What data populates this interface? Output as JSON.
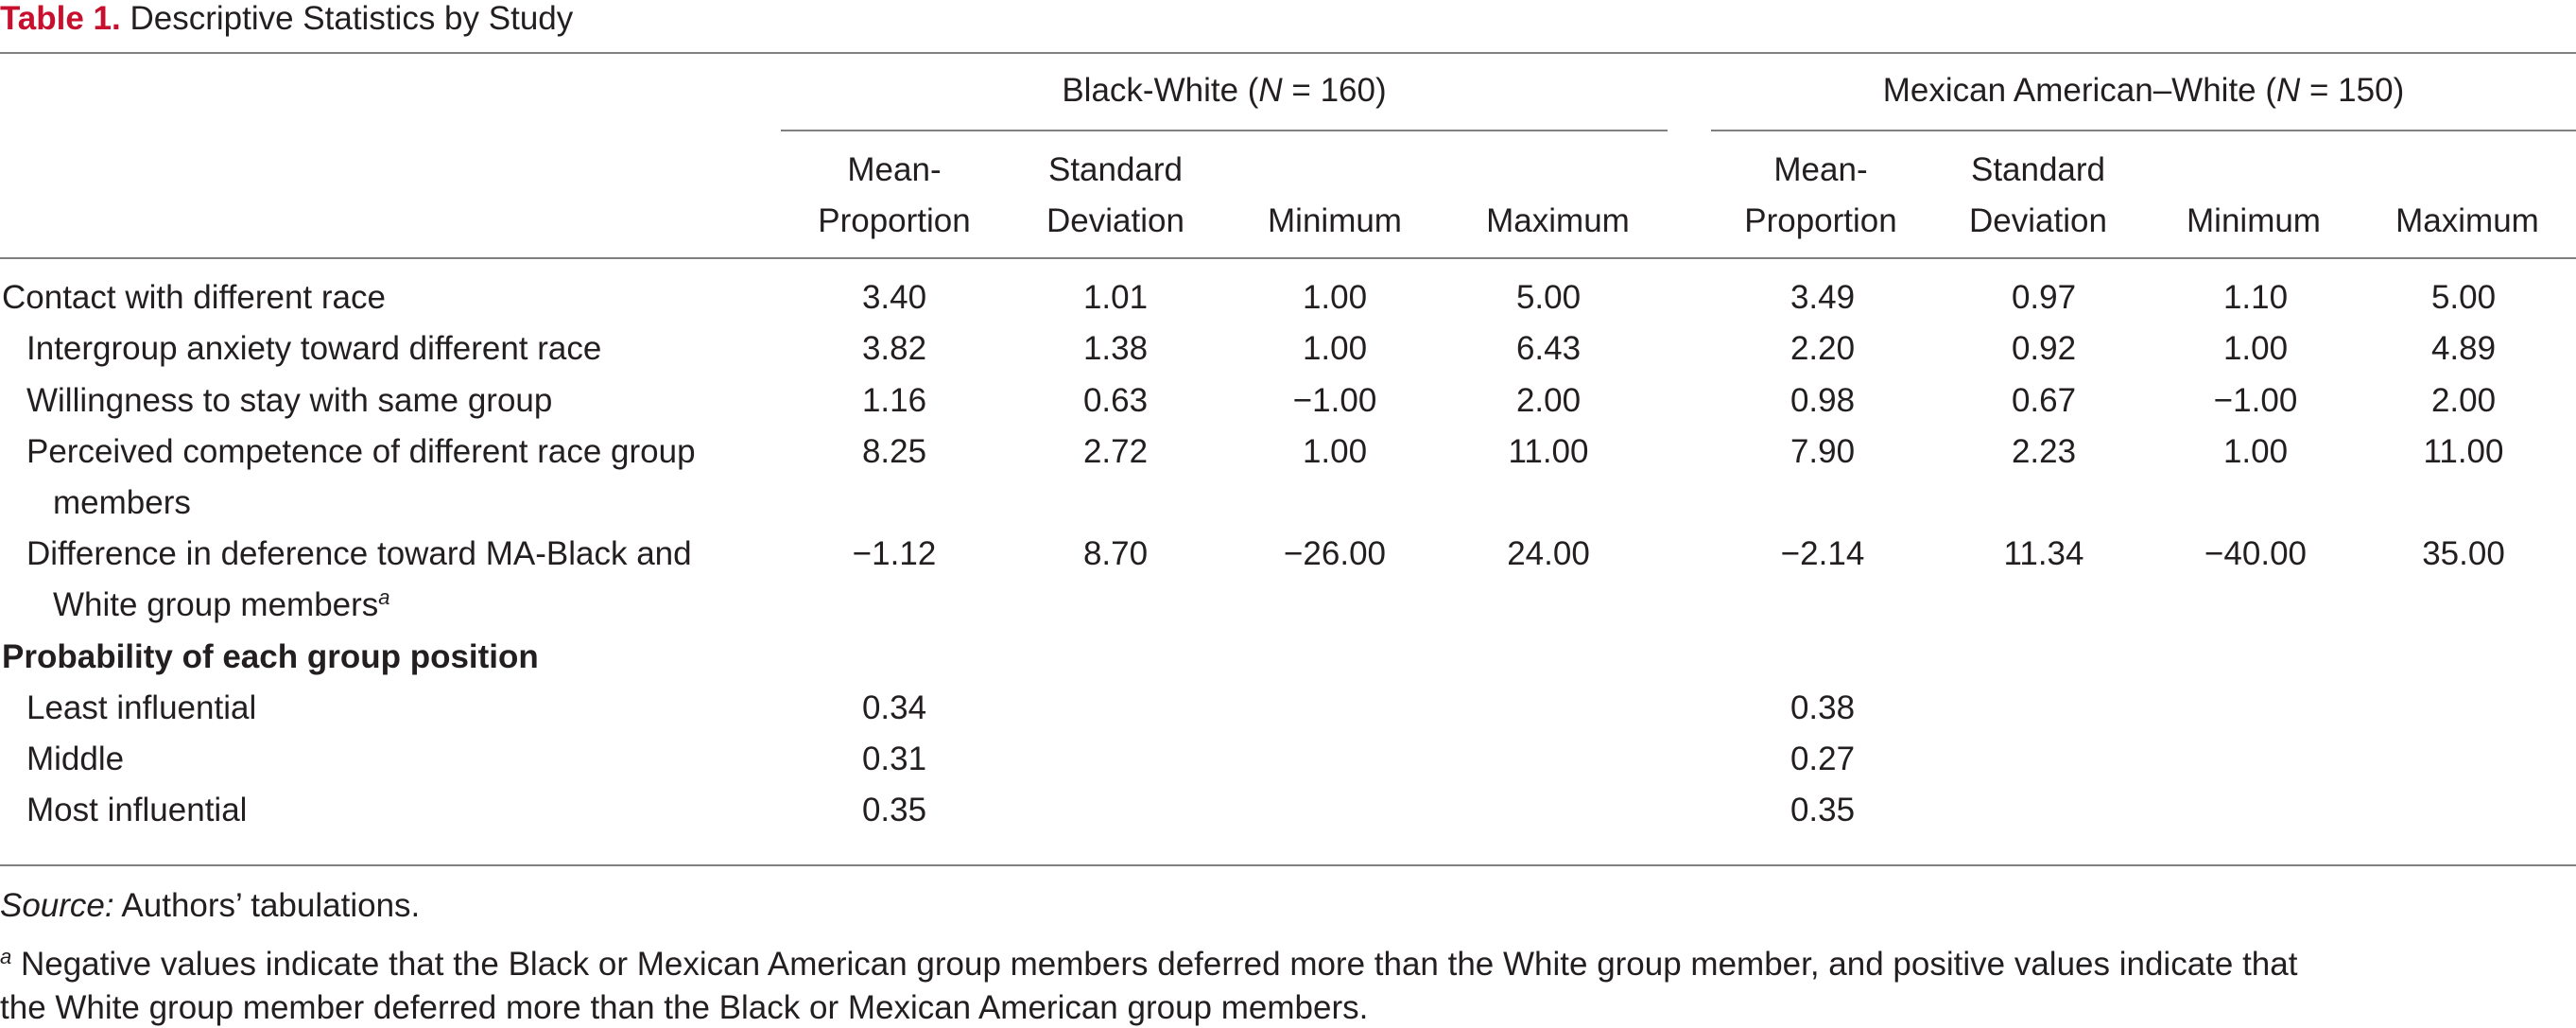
{
  "caption": {
    "label": "Table 1.",
    "title": "Descriptive Statistics by Study"
  },
  "groups": [
    {
      "pre": "Black-White (",
      "n_label": "N",
      "post": " = 160)"
    },
    {
      "pre": "Mexican American–White (",
      "n_label": "N",
      "post": " = 150)"
    }
  ],
  "columns": [
    {
      "line1": "Mean-",
      "line2": "Proportion"
    },
    {
      "line1": "Standard",
      "line2": "Deviation"
    },
    {
      "line1": "",
      "line2": "Minimum"
    },
    {
      "line1": "",
      "line2": "Maximum"
    }
  ],
  "rows": {
    "contact": {
      "label": "Contact with different race",
      "values": [
        "3.40",
        "1.01",
        "1.00",
        "5.00",
        "3.49",
        "0.97",
        "1.10",
        "5.00"
      ]
    },
    "anxiety": {
      "label": "Intergroup anxiety toward different race",
      "values": [
        "3.82",
        "1.38",
        "1.00",
        "6.43",
        "2.20",
        "0.92",
        "1.00",
        "4.89"
      ]
    },
    "willingness": {
      "label": "Willingness to stay with same group",
      "values": [
        "1.16",
        "0.63",
        "−1.00",
        "2.00",
        "0.98",
        "0.67",
        "−1.00",
        "2.00"
      ]
    },
    "competence": {
      "line1": "Perceived competence of different race group",
      "line2": "members",
      "values": [
        "8.25",
        "2.72",
        "1.00",
        "11.00",
        "7.90",
        "2.23",
        "1.00",
        "11.00"
      ]
    },
    "deference": {
      "line1": "Difference in deference toward MA-Black and",
      "line2": "White group members",
      "sup": "a",
      "values": [
        "−1.12",
        "8.70",
        "−26.00",
        "24.00",
        "−2.14",
        "11.34",
        "−40.00",
        "35.00"
      ]
    },
    "probability_header": {
      "label": "Probability of each group position"
    },
    "least": {
      "label": "Least influential",
      "values": [
        "0.34",
        "0.38"
      ]
    },
    "middle": {
      "label": "Middle",
      "values": [
        "0.31",
        "0.27"
      ]
    },
    "most": {
      "label": "Most influential",
      "values": [
        "0.35",
        "0.35"
      ]
    }
  },
  "footnotes": {
    "source_label": "Source:",
    "source_text": " Authors’ tabulations.",
    "note_marker": "a",
    "note_line1": " Negative values indicate that the Black or Mexican American group members deferred more than the White group member, and positive values indicate that",
    "note_line2": "the White group member deferred more than the Black or Mexican American group members."
  }
}
